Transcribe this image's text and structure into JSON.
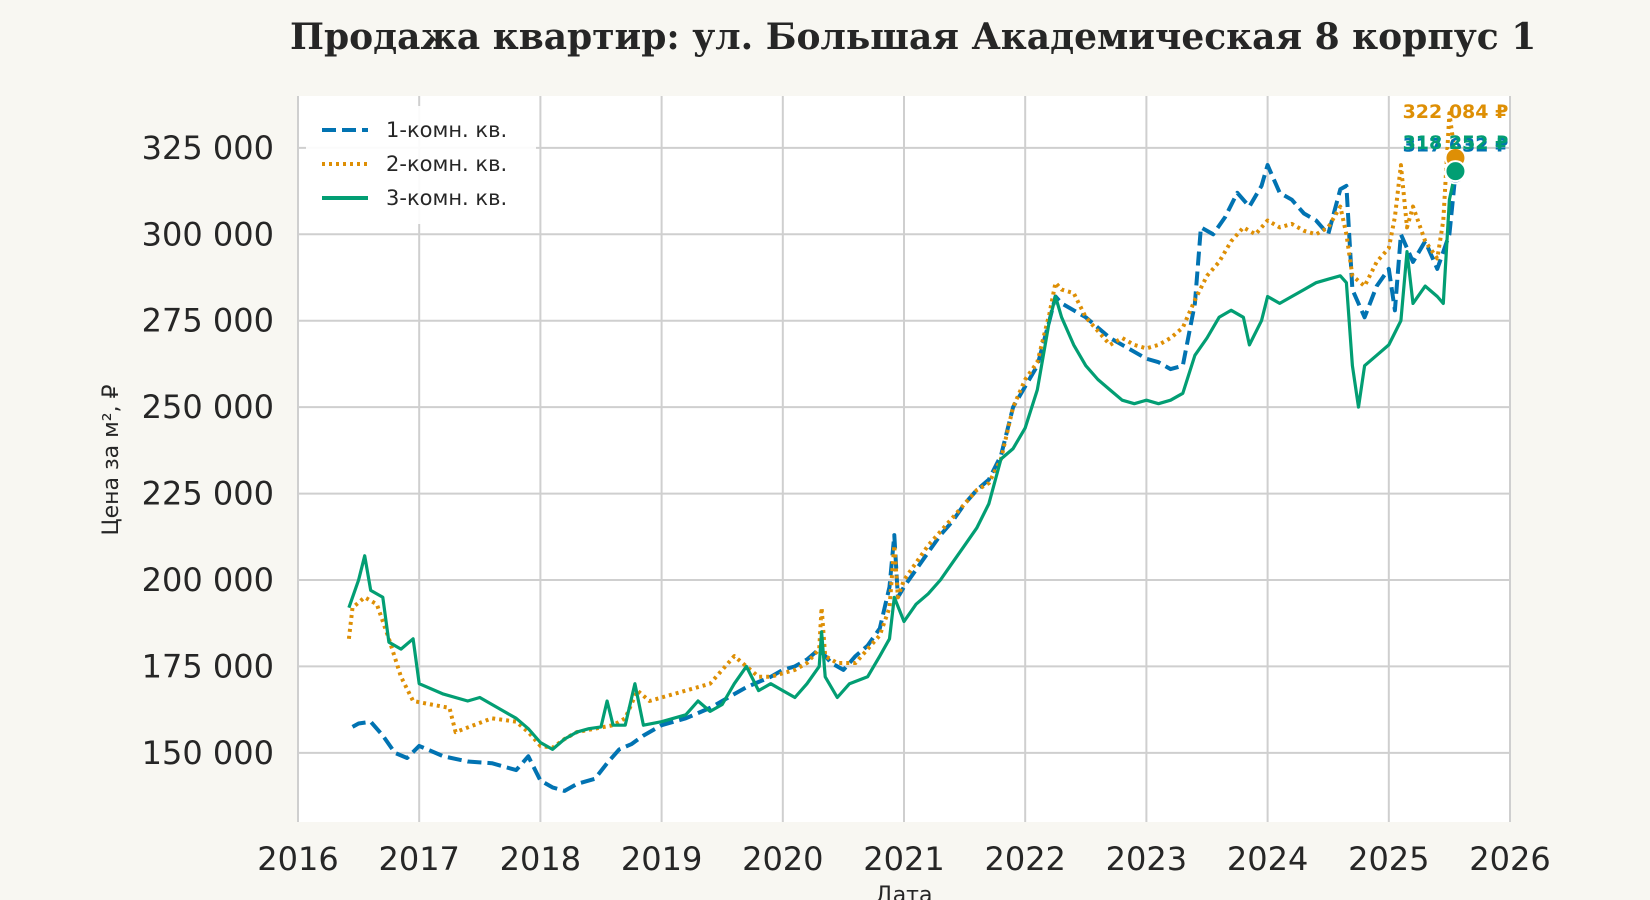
{
  "chart_data": {
    "type": "line",
    "title": "Продажа квартир: ул. Большая Академическая 8 корпус 1",
    "xlabel": "Дата",
    "ylabel": "Цена за м², ₽",
    "xlim": [
      2016,
      2026
    ],
    "ylim": [
      130000,
      340000
    ],
    "x_ticks": [
      "2016",
      "2017",
      "2018",
      "2019",
      "2020",
      "2021",
      "2022",
      "2023",
      "2024",
      "2025",
      "2026"
    ],
    "y_ticks": [
      {
        "value": 150000,
        "label": "150 000"
      },
      {
        "value": 175000,
        "label": "175 000"
      },
      {
        "value": 200000,
        "label": "200 000"
      },
      {
        "value": 225000,
        "label": "225 000"
      },
      {
        "value": 250000,
        "label": "250 000"
      },
      {
        "value": 275000,
        "label": "275 000"
      },
      {
        "value": 300000,
        "label": "300 000"
      },
      {
        "value": 325000,
        "label": "325 000"
      }
    ],
    "grid": true,
    "legend_position": "top-left",
    "series": [
      {
        "name": "1-комн. кв.",
        "color": "#0173b2",
        "style": "dashed",
        "end_label": "317 632 ₽",
        "points": [
          [
            2016.45,
            157500
          ],
          [
            2016.5,
            158500
          ],
          [
            2016.6,
            159000
          ],
          [
            2016.7,
            155000
          ],
          [
            2016.8,
            150000
          ],
          [
            2016.9,
            148500
          ],
          [
            2017.0,
            152000
          ],
          [
            2017.2,
            149000
          ],
          [
            2017.4,
            147500
          ],
          [
            2017.6,
            147000
          ],
          [
            2017.8,
            145000
          ],
          [
            2017.9,
            149000
          ],
          [
            2018.0,
            142000
          ],
          [
            2018.1,
            140000
          ],
          [
            2018.2,
            139000
          ],
          [
            2018.3,
            141000
          ],
          [
            2018.45,
            142500
          ],
          [
            2018.55,
            147000
          ],
          [
            2018.65,
            151000
          ],
          [
            2018.75,
            152500
          ],
          [
            2018.85,
            155000
          ],
          [
            2019.0,
            158000
          ],
          [
            2019.2,
            160000
          ],
          [
            2019.4,
            163000
          ],
          [
            2019.5,
            165000
          ],
          [
            2019.7,
            169000
          ],
          [
            2019.9,
            172000
          ],
          [
            2020.0,
            174000
          ],
          [
            2020.1,
            175000
          ],
          [
            2020.2,
            177000
          ],
          [
            2020.3,
            180000
          ],
          [
            2020.4,
            176000
          ],
          [
            2020.5,
            174000
          ],
          [
            2020.6,
            178000
          ],
          [
            2020.7,
            181000
          ],
          [
            2020.8,
            186000
          ],
          [
            2020.88,
            198000
          ],
          [
            2020.92,
            213000
          ],
          [
            2020.95,
            195000
          ],
          [
            2021.0,
            198000
          ],
          [
            2021.1,
            203000
          ],
          [
            2021.2,
            208000
          ],
          [
            2021.3,
            213000
          ],
          [
            2021.4,
            217000
          ],
          [
            2021.5,
            222000
          ],
          [
            2021.6,
            226000
          ],
          [
            2021.7,
            229000
          ],
          [
            2021.8,
            236000
          ],
          [
            2021.9,
            250000
          ],
          [
            2022.0,
            256000
          ],
          [
            2022.1,
            262000
          ],
          [
            2022.2,
            275000
          ],
          [
            2022.25,
            282000
          ],
          [
            2022.3,
            280000
          ],
          [
            2022.4,
            278000
          ],
          [
            2022.5,
            276000
          ],
          [
            2022.6,
            273000
          ],
          [
            2022.7,
            270000
          ],
          [
            2022.8,
            268000
          ],
          [
            2022.9,
            266000
          ],
          [
            2023.0,
            264000
          ],
          [
            2023.1,
            263000
          ],
          [
            2023.2,
            261000
          ],
          [
            2023.3,
            262000
          ],
          [
            2023.4,
            280000
          ],
          [
            2023.45,
            302000
          ],
          [
            2023.55,
            300000
          ],
          [
            2023.65,
            305000
          ],
          [
            2023.75,
            312000
          ],
          [
            2023.85,
            308000
          ],
          [
            2023.95,
            314000
          ],
          [
            2024.0,
            320000
          ],
          [
            2024.1,
            312000
          ],
          [
            2024.2,
            310000
          ],
          [
            2024.3,
            306000
          ],
          [
            2024.4,
            304000
          ],
          [
            2024.5,
            300000
          ],
          [
            2024.6,
            313000
          ],
          [
            2024.65,
            314000
          ],
          [
            2024.7,
            284000
          ],
          [
            2024.8,
            276000
          ],
          [
            2024.9,
            285000
          ],
          [
            2025.0,
            290000
          ],
          [
            2025.05,
            278000
          ],
          [
            2025.1,
            300000
          ],
          [
            2025.2,
            292000
          ],
          [
            2025.3,
            298000
          ],
          [
            2025.4,
            290000
          ],
          [
            2025.5,
            300000
          ],
          [
            2025.55,
            317632
          ]
        ]
      },
      {
        "name": "2-комн. кв.",
        "color": "#de8f05",
        "style": "dotted",
        "end_label": "322 084 ₽",
        "points": [
          [
            2016.42,
            183000
          ],
          [
            2016.45,
            192000
          ],
          [
            2016.55,
            195000
          ],
          [
            2016.65,
            193000
          ],
          [
            2016.75,
            183000
          ],
          [
            2016.85,
            172000
          ],
          [
            2016.95,
            165000
          ],
          [
            2017.1,
            164000
          ],
          [
            2017.25,
            163000
          ],
          [
            2017.3,
            156000
          ],
          [
            2017.45,
            158000
          ],
          [
            2017.6,
            160000
          ],
          [
            2017.8,
            159000
          ],
          [
            2017.9,
            156000
          ],
          [
            2018.0,
            152000
          ],
          [
            2018.1,
            151500
          ],
          [
            2018.2,
            154000
          ],
          [
            2018.3,
            156000
          ],
          [
            2018.45,
            157000
          ],
          [
            2018.6,
            158000
          ],
          [
            2018.7,
            160000
          ],
          [
            2018.8,
            168000
          ],
          [
            2018.9,
            165000
          ],
          [
            2019.0,
            166000
          ],
          [
            2019.2,
            168000
          ],
          [
            2019.4,
            170000
          ],
          [
            2019.5,
            174000
          ],
          [
            2019.6,
            178000
          ],
          [
            2019.7,
            175000
          ],
          [
            2019.8,
            172000
          ],
          [
            2019.9,
            172000
          ],
          [
            2020.0,
            173000
          ],
          [
            2020.1,
            174000
          ],
          [
            2020.2,
            176000
          ],
          [
            2020.3,
            180000
          ],
          [
            2020.32,
            192000
          ],
          [
            2020.35,
            178000
          ],
          [
            2020.45,
            176000
          ],
          [
            2020.6,
            176000
          ],
          [
            2020.7,
            180000
          ],
          [
            2020.8,
            184000
          ],
          [
            2020.88,
            192000
          ],
          [
            2020.92,
            210000
          ],
          [
            2020.95,
            195000
          ],
          [
            2021.0,
            200000
          ],
          [
            2021.1,
            205000
          ],
          [
            2021.2,
            210000
          ],
          [
            2021.3,
            214000
          ],
          [
            2021.4,
            218000
          ],
          [
            2021.5,
            222000
          ],
          [
            2021.6,
            226000
          ],
          [
            2021.7,
            228000
          ],
          [
            2021.8,
            235000
          ],
          [
            2021.9,
            250000
          ],
          [
            2022.0,
            258000
          ],
          [
            2022.1,
            263000
          ],
          [
            2022.2,
            277000
          ],
          [
            2022.25,
            286000
          ],
          [
            2022.3,
            284000
          ],
          [
            2022.4,
            283000
          ],
          [
            2022.5,
            276000
          ],
          [
            2022.6,
            272000
          ],
          [
            2022.7,
            268000
          ],
          [
            2022.8,
            270000
          ],
          [
            2022.9,
            268000
          ],
          [
            2023.0,
            267000
          ],
          [
            2023.1,
            268000
          ],
          [
            2023.2,
            270000
          ],
          [
            2023.3,
            273000
          ],
          [
            2023.4,
            281000
          ],
          [
            2023.5,
            288000
          ],
          [
            2023.6,
            292000
          ],
          [
            2023.7,
            298000
          ],
          [
            2023.8,
            302000
          ],
          [
            2023.9,
            300000
          ],
          [
            2024.0,
            304000
          ],
          [
            2024.1,
            302000
          ],
          [
            2024.2,
            303000
          ],
          [
            2024.3,
            301000
          ],
          [
            2024.4,
            300000
          ],
          [
            2024.5,
            302000
          ],
          [
            2024.6,
            308000
          ],
          [
            2024.65,
            300000
          ],
          [
            2024.7,
            288000
          ],
          [
            2024.8,
            285000
          ],
          [
            2024.9,
            292000
          ],
          [
            2025.0,
            296000
          ],
          [
            2025.05,
            305000
          ],
          [
            2025.1,
            320000
          ],
          [
            2025.15,
            302000
          ],
          [
            2025.2,
            308000
          ],
          [
            2025.3,
            298000
          ],
          [
            2025.4,
            293000
          ],
          [
            2025.45,
            304000
          ],
          [
            2025.5,
            335000
          ],
          [
            2025.55,
            322084
          ]
        ]
      },
      {
        "name": "3-комн. кв.",
        "color": "#029e73",
        "style": "solid",
        "end_label": "318 252 ₽",
        "points": [
          [
            2016.42,
            192000
          ],
          [
            2016.5,
            200000
          ],
          [
            2016.55,
            207000
          ],
          [
            2016.6,
            197000
          ],
          [
            2016.7,
            195000
          ],
          [
            2016.75,
            182000
          ],
          [
            2016.85,
            180000
          ],
          [
            2016.95,
            183000
          ],
          [
            2017.0,
            170000
          ],
          [
            2017.2,
            167000
          ],
          [
            2017.4,
            165000
          ],
          [
            2017.5,
            166000
          ],
          [
            2017.7,
            162000
          ],
          [
            2017.8,
            160000
          ],
          [
            2017.9,
            157000
          ],
          [
            2018.0,
            153000
          ],
          [
            2018.1,
            151000
          ],
          [
            2018.2,
            154000
          ],
          [
            2018.3,
            156000
          ],
          [
            2018.4,
            157000
          ],
          [
            2018.5,
            157500
          ],
          [
            2018.55,
            165000
          ],
          [
            2018.6,
            158000
          ],
          [
            2018.7,
            158000
          ],
          [
            2018.78,
            170000
          ],
          [
            2018.85,
            158000
          ],
          [
            2019.0,
            159000
          ],
          [
            2019.2,
            161000
          ],
          [
            2019.3,
            165000
          ],
          [
            2019.4,
            162000
          ],
          [
            2019.5,
            164000
          ],
          [
            2019.6,
            170000
          ],
          [
            2019.7,
            175000
          ],
          [
            2019.8,
            168000
          ],
          [
            2019.9,
            170000
          ],
          [
            2020.0,
            168000
          ],
          [
            2020.1,
            166000
          ],
          [
            2020.2,
            170000
          ],
          [
            2020.3,
            175000
          ],
          [
            2020.32,
            185000
          ],
          [
            2020.35,
            172000
          ],
          [
            2020.45,
            166000
          ],
          [
            2020.55,
            170000
          ],
          [
            2020.7,
            172000
          ],
          [
            2020.8,
            178000
          ],
          [
            2020.88,
            183000
          ],
          [
            2020.92,
            195000
          ],
          [
            2021.0,
            188000
          ],
          [
            2021.1,
            193000
          ],
          [
            2021.2,
            196000
          ],
          [
            2021.3,
            200000
          ],
          [
            2021.4,
            205000
          ],
          [
            2021.5,
            210000
          ],
          [
            2021.6,
            215000
          ],
          [
            2021.7,
            222000
          ],
          [
            2021.8,
            235000
          ],
          [
            2021.9,
            238000
          ],
          [
            2022.0,
            244000
          ],
          [
            2022.1,
            255000
          ],
          [
            2022.2,
            275000
          ],
          [
            2022.25,
            282000
          ],
          [
            2022.3,
            276000
          ],
          [
            2022.4,
            268000
          ],
          [
            2022.5,
            262000
          ],
          [
            2022.6,
            258000
          ],
          [
            2022.7,
            255000
          ],
          [
            2022.8,
            252000
          ],
          [
            2022.9,
            251000
          ],
          [
            2023.0,
            252000
          ],
          [
            2023.1,
            251000
          ],
          [
            2023.2,
            252000
          ],
          [
            2023.3,
            254000
          ],
          [
            2023.4,
            265000
          ],
          [
            2023.5,
            270000
          ],
          [
            2023.6,
            276000
          ],
          [
            2023.7,
            278000
          ],
          [
            2023.8,
            276000
          ],
          [
            2023.85,
            268000
          ],
          [
            2023.95,
            275000
          ],
          [
            2024.0,
            282000
          ],
          [
            2024.1,
            280000
          ],
          [
            2024.2,
            282000
          ],
          [
            2024.3,
            284000
          ],
          [
            2024.4,
            286000
          ],
          [
            2024.5,
            287000
          ],
          [
            2024.6,
            288000
          ],
          [
            2024.65,
            286000
          ],
          [
            2024.7,
            262000
          ],
          [
            2024.75,
            250000
          ],
          [
            2024.8,
            262000
          ],
          [
            2024.9,
            265000
          ],
          [
            2025.0,
            268000
          ],
          [
            2025.1,
            275000
          ],
          [
            2025.15,
            295000
          ],
          [
            2025.2,
            280000
          ],
          [
            2025.3,
            285000
          ],
          [
            2025.4,
            282000
          ],
          [
            2025.45,
            280000
          ],
          [
            2025.5,
            310000
          ],
          [
            2025.55,
            318252
          ]
        ]
      }
    ]
  }
}
